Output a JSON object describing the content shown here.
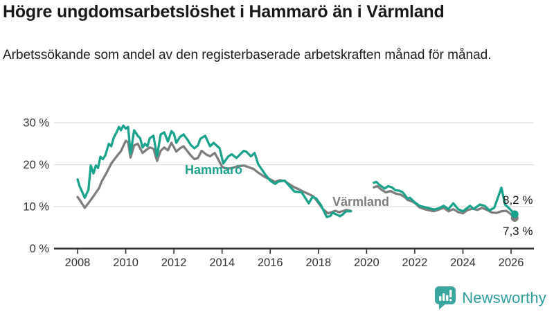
{
  "header": {
    "title": "Högre ungdomsarbetslöshet i Hammarö än i Värmland",
    "subtitle": "Arbetssökande som andel av den registerbaserade arbetskraften månad för månad."
  },
  "footer": {
    "brand": "Newsworthy",
    "brand_color": "#2d9d9d",
    "logo_color": "#3aa49e"
  },
  "chart_data": {
    "type": "line",
    "title": "Högre ungdomsarbetslöshet i Hammarö än i Värmland",
    "subtitle": "Arbetssökande som andel av den registerbaserade arbetskraften månad för månad.",
    "xlabel": "",
    "ylabel": "",
    "unit": "%",
    "xlim": [
      2007.9,
      2026.9
    ],
    "ylim": [
      0,
      32
    ],
    "grid": "horizontal",
    "legend_position": "inline-labels",
    "y_ticks": [
      {
        "value": 0,
        "label": "0 %"
      },
      {
        "value": 10,
        "label": "10 %"
      },
      {
        "value": 20,
        "label": "20 %"
      },
      {
        "value": 30,
        "label": "30 %"
      }
    ],
    "x_ticks": [
      {
        "value": 2008,
        "label": "2008"
      },
      {
        "value": 2010,
        "label": "2010"
      },
      {
        "value": 2012,
        "label": "2012"
      },
      {
        "value": 2014,
        "label": "2014"
      },
      {
        "value": 2016,
        "label": "2016"
      },
      {
        "value": 2018,
        "label": "2018"
      },
      {
        "value": 2020,
        "label": "2020"
      },
      {
        "value": 2022,
        "label": "2022"
      },
      {
        "value": 2024,
        "label": "2024"
      },
      {
        "value": 2026,
        "label": "2026"
      }
    ],
    "series": [
      {
        "name": "Hammarö",
        "color": "#1aa38c",
        "end_label": "8,2 %",
        "end_value": 8.2,
        "segments": [
          [
            [
              2008.0,
              16.5
            ],
            [
              2008.08,
              14.9
            ],
            [
              2008.17,
              13.8
            ],
            [
              2008.3,
              12.1
            ],
            [
              2008.45,
              14.0
            ],
            [
              2008.55,
              19.8
            ],
            [
              2008.66,
              17.9
            ],
            [
              2008.76,
              19.8
            ],
            [
              2008.85,
              19.2
            ],
            [
              2008.95,
              21.9
            ],
            [
              2009.05,
              21.3
            ],
            [
              2009.15,
              22.2
            ],
            [
              2009.3,
              25.0
            ],
            [
              2009.4,
              24.4
            ],
            [
              2009.5,
              26.4
            ],
            [
              2009.62,
              27.7
            ],
            [
              2009.72,
              29.0
            ],
            [
              2009.8,
              28.2
            ],
            [
              2009.9,
              29.3
            ],
            [
              2010.0,
              28.6
            ],
            [
              2010.1,
              29.0
            ],
            [
              2010.2,
              22.6
            ],
            [
              2010.35,
              28.2
            ],
            [
              2010.5,
              26.9
            ],
            [
              2010.6,
              26.3
            ],
            [
              2010.7,
              24.1
            ],
            [
              2010.8,
              25.0
            ],
            [
              2010.9,
              24.4
            ],
            [
              2011.0,
              26.3
            ],
            [
              2011.15,
              26.9
            ],
            [
              2011.3,
              22.0
            ],
            [
              2011.45,
              27.2
            ],
            [
              2011.6,
              27.7
            ],
            [
              2011.75,
              25.5
            ],
            [
              2011.9,
              28.0
            ],
            [
              2012.0,
              27.4
            ],
            [
              2012.1,
              25.2
            ],
            [
              2012.25,
              26.6
            ],
            [
              2012.4,
              27.2
            ],
            [
              2012.55,
              26.1
            ],
            [
              2012.7,
              24.7
            ],
            [
              2012.85,
              23.9
            ],
            [
              2013.0,
              24.6
            ],
            [
              2013.1,
              26.2
            ],
            [
              2013.3,
              26.9
            ],
            [
              2013.5,
              24.4
            ],
            [
              2013.65,
              25.2
            ],
            [
              2013.9,
              23.9
            ],
            [
              2014.05,
              20.3
            ],
            [
              2014.25,
              21.9
            ],
            [
              2014.4,
              22.5
            ],
            [
              2014.6,
              21.6
            ],
            [
              2014.9,
              23.3
            ],
            [
              2015.0,
              23.1
            ],
            [
              2015.2,
              22.0
            ],
            [
              2015.35,
              22.8
            ],
            [
              2015.5,
              20.1
            ],
            [
              2015.8,
              17.6
            ],
            [
              2016.0,
              16.2
            ],
            [
              2016.2,
              15.4
            ],
            [
              2016.35,
              16.0
            ],
            [
              2016.6,
              16.2
            ],
            [
              2016.8,
              14.9
            ],
            [
              2017.0,
              13.6
            ],
            [
              2017.3,
              13.4
            ],
            [
              2017.6,
              10.8
            ],
            [
              2017.75,
              12.3
            ],
            [
              2017.9,
              12.0
            ],
            [
              2018.1,
              10.4
            ],
            [
              2018.35,
              7.5
            ],
            [
              2018.5,
              7.8
            ],
            [
              2018.6,
              8.6
            ],
            [
              2018.75,
              8.1
            ],
            [
              2018.9,
              7.7
            ],
            [
              2019.0,
              8.1
            ],
            [
              2019.15,
              8.9
            ],
            [
              2019.35,
              8.9
            ]
          ],
          [
            [
              2020.3,
              15.7
            ],
            [
              2020.4,
              15.9
            ],
            [
              2020.55,
              15.1
            ],
            [
              2020.75,
              14.3
            ],
            [
              2020.9,
              14.9
            ],
            [
              2021.05,
              14.6
            ],
            [
              2021.2,
              13.9
            ],
            [
              2021.35,
              13.8
            ],
            [
              2021.5,
              13.4
            ],
            [
              2021.7,
              11.9
            ],
            [
              2021.8,
              12.1
            ],
            [
              2022.0,
              11.0
            ],
            [
              2022.2,
              10.2
            ],
            [
              2022.4,
              9.9
            ],
            [
              2022.6,
              9.6
            ],
            [
              2022.8,
              9.3
            ],
            [
              2023.0,
              9.6
            ],
            [
              2023.2,
              10.2
            ],
            [
              2023.4,
              9.4
            ],
            [
              2023.6,
              10.8
            ],
            [
              2023.8,
              9.4
            ],
            [
              2024.0,
              8.9
            ],
            [
              2024.3,
              10.2
            ],
            [
              2024.45,
              9.4
            ],
            [
              2024.7,
              10.5
            ],
            [
              2024.9,
              10.2
            ],
            [
              2025.1,
              9.1
            ],
            [
              2025.3,
              9.7
            ],
            [
              2025.45,
              12.1
            ],
            [
              2025.6,
              14.5
            ],
            [
              2025.75,
              10.5
            ],
            [
              2025.9,
              9.7
            ],
            [
              2026.15,
              8.2
            ]
          ]
        ]
      },
      {
        "name": "Värmland",
        "color": "#7e7e7e",
        "end_label": "7,3 %",
        "end_value": 7.3,
        "segments": [
          [
            [
              2008.0,
              12.3
            ],
            [
              2008.1,
              11.5
            ],
            [
              2008.3,
              9.7
            ],
            [
              2008.5,
              11.2
            ],
            [
              2008.7,
              12.8
            ],
            [
              2008.9,
              14.5
            ],
            [
              2009.0,
              16.0
            ],
            [
              2009.2,
              18.0
            ],
            [
              2009.4,
              20.3
            ],
            [
              2009.6,
              21.8
            ],
            [
              2009.8,
              23.2
            ],
            [
              2010.0,
              25.7
            ],
            [
              2010.1,
              25.3
            ],
            [
              2010.2,
              21.7
            ],
            [
              2010.35,
              24.6
            ],
            [
              2010.5,
              25.0
            ],
            [
              2010.7,
              22.8
            ],
            [
              2010.85,
              23.5
            ],
            [
              2011.0,
              24.1
            ],
            [
              2011.15,
              23.8
            ],
            [
              2011.3,
              20.9
            ],
            [
              2011.45,
              23.3
            ],
            [
              2011.6,
              24.1
            ],
            [
              2011.75,
              23.4
            ],
            [
              2011.9,
              25.2
            ],
            [
              2012.1,
              23.1
            ],
            [
              2012.25,
              23.9
            ],
            [
              2012.4,
              24.4
            ],
            [
              2012.55,
              23.3
            ],
            [
              2012.7,
              22.2
            ],
            [
              2012.85,
              21.3
            ],
            [
              2013.0,
              21.6
            ],
            [
              2013.15,
              23.3
            ],
            [
              2013.35,
              22.4
            ],
            [
              2013.5,
              22.0
            ],
            [
              2013.7,
              22.8
            ],
            [
              2014.0,
              19.5
            ],
            [
              2014.2,
              19.0
            ],
            [
              2014.4,
              19.2
            ],
            [
              2014.65,
              19.6
            ],
            [
              2014.9,
              19.8
            ],
            [
              2015.1,
              19.4
            ],
            [
              2015.3,
              19.0
            ],
            [
              2015.5,
              18.1
            ],
            [
              2015.8,
              17.0
            ],
            [
              2016.0,
              16.5
            ],
            [
              2016.2,
              15.9
            ],
            [
              2016.4,
              16.3
            ],
            [
              2016.6,
              16.1
            ],
            [
              2016.8,
              15.3
            ],
            [
              2017.0,
              14.6
            ],
            [
              2017.2,
              14.1
            ],
            [
              2017.4,
              13.5
            ],
            [
              2017.6,
              13.0
            ],
            [
              2017.8,
              12.4
            ],
            [
              2018.0,
              10.9
            ],
            [
              2018.2,
              9.3
            ],
            [
              2018.4,
              8.4
            ],
            [
              2018.55,
              8.7
            ],
            [
              2018.7,
              9.0
            ],
            [
              2018.85,
              8.7
            ],
            [
              2019.0,
              8.9
            ],
            [
              2019.15,
              9.2
            ],
            [
              2019.35,
              9.0
            ]
          ],
          [
            [
              2020.3,
              14.6
            ],
            [
              2020.45,
              14.9
            ],
            [
              2020.6,
              14.1
            ],
            [
              2020.8,
              13.4
            ],
            [
              2021.0,
              13.7
            ],
            [
              2021.2,
              13.1
            ],
            [
              2021.4,
              12.9
            ],
            [
              2021.6,
              12.2
            ],
            [
              2021.7,
              11.6
            ],
            [
              2021.9,
              11.2
            ],
            [
              2022.0,
              10.9
            ],
            [
              2022.2,
              9.8
            ],
            [
              2022.4,
              9.4
            ],
            [
              2022.6,
              9.1
            ],
            [
              2022.8,
              8.9
            ],
            [
              2023.0,
              9.3
            ],
            [
              2023.2,
              9.7
            ],
            [
              2023.4,
              8.9
            ],
            [
              2023.6,
              9.4
            ],
            [
              2023.8,
              8.7
            ],
            [
              2024.0,
              8.4
            ],
            [
              2024.2,
              9.2
            ],
            [
              2024.4,
              9.5
            ],
            [
              2024.6,
              9.2
            ],
            [
              2024.8,
              9.7
            ],
            [
              2025.0,
              9.2
            ],
            [
              2025.2,
              8.6
            ],
            [
              2025.4,
              8.5
            ],
            [
              2025.6,
              8.9
            ],
            [
              2025.8,
              9.0
            ],
            [
              2025.95,
              8.4
            ],
            [
              2026.15,
              7.3
            ]
          ]
        ]
      }
    ],
    "colors": {
      "grid": "#dedede",
      "axis": "#2f2f2f",
      "tick_text": "#333333"
    }
  }
}
